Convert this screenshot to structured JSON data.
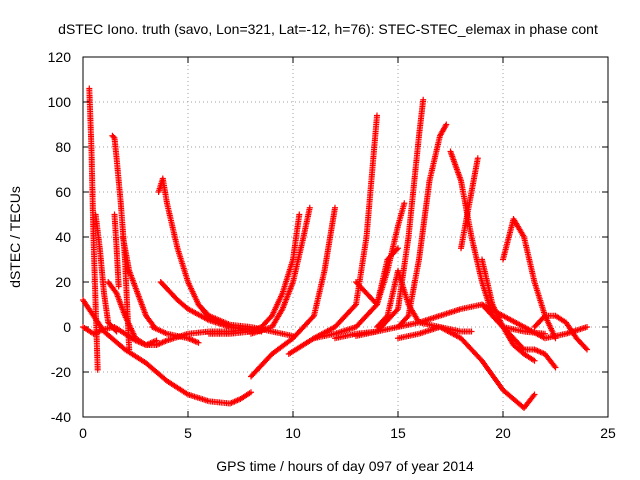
{
  "chart_data": {
    "type": "scatter",
    "title": "dSTEC Iono. truth (savo, Lon=321, Lat=-12, h=76): STEC-STEC_elemax in phase cont",
    "xlabel": "GPS time / hours of day 097 of year 2014",
    "ylabel": "dSTEC  / TECUs",
    "xlim": [
      0,
      25
    ],
    "ylim": [
      -40,
      120
    ],
    "xticks": [
      0,
      5,
      10,
      15,
      20,
      25
    ],
    "yticks": [
      -40,
      -20,
      0,
      20,
      40,
      60,
      80,
      100,
      120
    ],
    "grid": true,
    "marker": "+",
    "color": "#ff0000",
    "series": [
      {
        "x": [
          0.3,
          0.4,
          0.5,
          0.6,
          0.7
        ],
        "y": [
          106,
          80,
          40,
          10,
          -19
        ]
      },
      {
        "x": [
          0.6,
          0.8,
          1.0,
          1.2,
          1.4,
          1.6
        ],
        "y": [
          50,
          35,
          15,
          2,
          0,
          -2
        ]
      },
      {
        "x": [
          1.4,
          1.5,
          1.6,
          1.8,
          2.0,
          2.1,
          2.2
        ],
        "y": [
          85,
          84,
          75,
          55,
          30,
          10,
          -10
        ]
      },
      {
        "x": [
          1.5,
          1.6,
          1.7
        ],
        "y": [
          50,
          35,
          18
        ]
      },
      {
        "x": [
          1.9,
          2.2,
          2.6,
          3.0,
          3.4
        ],
        "y": [
          40,
          25,
          15,
          5,
          0
        ]
      },
      {
        "x": [
          3.6,
          3.8,
          4.0,
          4.5,
          5.0,
          5.5,
          6.0,
          7.0,
          8.0
        ],
        "y": [
          60,
          66,
          55,
          35,
          20,
          10,
          4,
          0,
          -1
        ]
      },
      {
        "x": [
          3.7,
          4.0,
          4.5,
          5.0,
          6.0,
          7.0,
          8.5
        ],
        "y": [
          20,
          17,
          12,
          8,
          3,
          0,
          -2
        ]
      },
      {
        "x": [
          1.2,
          1.6,
          2.0,
          2.5,
          3.0,
          3.5,
          4.0,
          5.0,
          6.0,
          7.0,
          8.0
        ],
        "y": [
          20,
          15,
          5,
          -5,
          -8,
          -8,
          -6,
          -3,
          -2,
          -2,
          -1
        ]
      },
      {
        "x": [
          0.0,
          0.5,
          1.0,
          2.0,
          3.0,
          4.0,
          5.0,
          6.0,
          7.0,
          7.5,
          8.0
        ],
        "y": [
          12,
          5,
          -2,
          -10,
          -16,
          -24,
          -30,
          -33,
          -34,
          -32,
          -29
        ]
      },
      {
        "x": [
          0.0,
          0.5,
          1.0,
          1.5,
          2.0,
          2.5,
          3.0,
          3.5
        ],
        "y": [
          0,
          -3,
          -1,
          0,
          -3,
          -6,
          -8,
          -6
        ]
      },
      {
        "x": [
          3.3,
          4.0,
          5.0,
          5.5
        ],
        "y": [
          0,
          -3,
          -5,
          -7
        ]
      },
      {
        "x": [
          5.5,
          6.0,
          7.0,
          8.0,
          9.0,
          9.5,
          10.0
        ],
        "y": [
          10,
          5,
          1,
          0,
          -2,
          -3,
          -4
        ]
      },
      {
        "x": [
          6.0,
          7.0,
          8.0,
          8.5,
          9.0,
          9.5,
          10.0,
          10.3
        ],
        "y": [
          -3,
          -3,
          -2,
          0,
          5,
          15,
          30,
          50
        ]
      },
      {
        "x": [
          8.0,
          9.0,
          9.5,
          10.0,
          10.5,
          10.8
        ],
        "y": [
          -3,
          0,
          8,
          20,
          40,
          53
        ]
      },
      {
        "x": [
          8.0,
          9.0,
          10.0,
          11.0,
          11.5,
          12.0
        ],
        "y": [
          -22,
          -12,
          -5,
          5,
          25,
          53
        ]
      },
      {
        "x": [
          9.8,
          11.0,
          12.0,
          13.0,
          13.5,
          14.0
        ],
        "y": [
          -12,
          -5,
          0,
          10,
          40,
          94
        ]
      },
      {
        "x": [
          11.0,
          12.0,
          13.0,
          14.0,
          14.5,
          15.0
        ],
        "y": [
          -5,
          -3,
          0,
          10,
          30,
          35
        ]
      },
      {
        "x": [
          12.0,
          13.0,
          14.0,
          15.0,
          15.5,
          16.0,
          16.2
        ],
        "y": [
          -5,
          -3,
          -2,
          8,
          40,
          85,
          101
        ]
      },
      {
        "x": [
          13.0,
          14.0,
          15.0,
          15.5,
          16.0,
          16.5,
          17.0,
          17.3
        ],
        "y": [
          -4,
          -2,
          0,
          5,
          30,
          65,
          85,
          90
        ]
      },
      {
        "x": [
          13.0,
          14.0,
          14.5,
          15.0,
          15.3
        ],
        "y": [
          20,
          10,
          25,
          45,
          55
        ]
      },
      {
        "x": [
          14.0,
          14.5,
          15.0,
          15.5,
          16.0,
          17.0,
          18.0,
          18.5
        ],
        "y": [
          0,
          5,
          25,
          10,
          2,
          0,
          -2,
          -2
        ]
      },
      {
        "x": [
          15.0,
          16.0,
          17.0,
          18.0,
          19.0,
          20.0,
          21.0,
          22.0,
          23.0,
          24.0
        ],
        "y": [
          0,
          2,
          5,
          8,
          10,
          5,
          0,
          -5,
          -3,
          0
        ]
      },
      {
        "x": [
          17.5,
          18.0,
          18.5,
          19.0,
          19.5,
          20.0,
          21.0,
          22.0
        ],
        "y": [
          78,
          65,
          40,
          20,
          5,
          0,
          -2,
          -3
        ]
      },
      {
        "x": [
          18.0,
          18.5,
          18.8
        ],
        "y": [
          35,
          60,
          75
        ]
      },
      {
        "x": [
          19.0,
          19.5,
          20.0,
          20.5,
          21.0,
          21.5
        ],
        "y": [
          30,
          10,
          0,
          -8,
          -12,
          -15
        ]
      },
      {
        "x": [
          20.0,
          20.5,
          21.0,
          21.5,
          22.0,
          22.5
        ],
        "y": [
          30,
          48,
          40,
          20,
          5,
          -5
        ]
      },
      {
        "x": [
          19.0,
          20.0,
          20.5,
          21.0,
          21.5,
          22.0,
          22.5
        ],
        "y": [
          10,
          0,
          -5,
          -10,
          -10,
          -12,
          -18
        ]
      },
      {
        "x": [
          21.5,
          22.0,
          22.5,
          23.0,
          23.5,
          24.0
        ],
        "y": [
          0,
          5,
          5,
          2,
          -5,
          -10
        ]
      },
      {
        "x": [
          15.0,
          16.0,
          17.0,
          18.0,
          19.0,
          20.0,
          21.0,
          21.5
        ],
        "y": [
          -5,
          -3,
          0,
          -5,
          -15,
          -28,
          -36,
          -30
        ]
      }
    ]
  }
}
